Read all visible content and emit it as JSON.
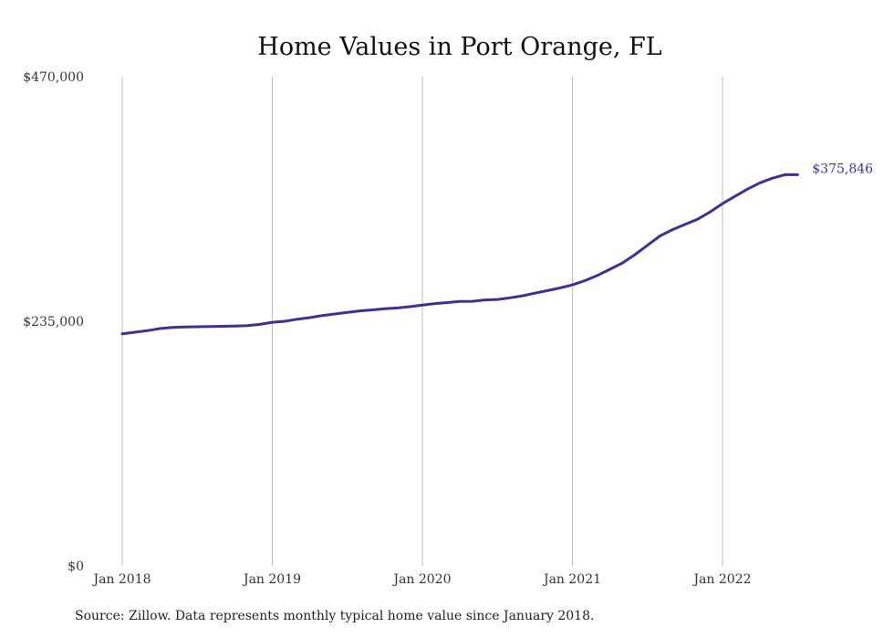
{
  "chart_data": {
    "type": "line",
    "title": "Home Values in Port Orange, FL",
    "xlabel": "",
    "ylabel": "",
    "ylim": [
      0,
      470000
    ],
    "yticks": [
      {
        "value": 0,
        "label": "$0"
      },
      {
        "value": 235000,
        "label": "$235,000"
      },
      {
        "value": 470000,
        "label": "$470,000"
      }
    ],
    "xticks": [
      {
        "value": "2018-01",
        "label": "Jan 2018"
      },
      {
        "value": "2019-01",
        "label": "Jan 2019"
      },
      {
        "value": "2020-01",
        "label": "Jan 2020"
      },
      {
        "value": "2021-01",
        "label": "Jan 2021"
      },
      {
        "value": "2022-01",
        "label": "Jan 2022"
      }
    ],
    "grid": "vertical",
    "series": [
      {
        "color": "#3b3394",
        "x": [
          "2018-01",
          "2018-02",
          "2018-03",
          "2018-04",
          "2018-05",
          "2018-06",
          "2018-07",
          "2018-08",
          "2018-09",
          "2018-10",
          "2018-11",
          "2018-12",
          "2019-01",
          "2019-02",
          "2019-03",
          "2019-04",
          "2019-05",
          "2019-06",
          "2019-07",
          "2019-08",
          "2019-09",
          "2019-10",
          "2019-11",
          "2019-12",
          "2020-01",
          "2020-02",
          "2020-03",
          "2020-04",
          "2020-05",
          "2020-06",
          "2020-07",
          "2020-08",
          "2020-09",
          "2020-10",
          "2020-11",
          "2020-12",
          "2021-01",
          "2021-02",
          "2021-03",
          "2021-04",
          "2021-05",
          "2021-06",
          "2021-07",
          "2021-08",
          "2021-09",
          "2021-10",
          "2021-11",
          "2021-12",
          "2022-01",
          "2022-02",
          "2022-03",
          "2022-04",
          "2022-05",
          "2022-06",
          "2022-07"
        ],
        "values": [
          223000,
          224500,
          226000,
          228000,
          229000,
          229500,
          229700,
          230000,
          230200,
          230400,
          230800,
          232000,
          234000,
          235000,
          237000,
          238500,
          240500,
          242000,
          243500,
          245000,
          246000,
          247000,
          247800,
          249000,
          250500,
          252000,
          253000,
          254000,
          254200,
          255500,
          256000,
          257500,
          259500,
          262000,
          264500,
          267000,
          270000,
          274000,
          279000,
          285000,
          291000,
          299000,
          308000,
          317000,
          323000,
          328000,
          333000,
          340000,
          348000,
          355000,
          362000,
          368000,
          372500,
          375846,
          375846
        ]
      }
    ],
    "end_label": "$375,846"
  },
  "source_note": "Source: Zillow. Data represents monthly typical home value since January 2018."
}
